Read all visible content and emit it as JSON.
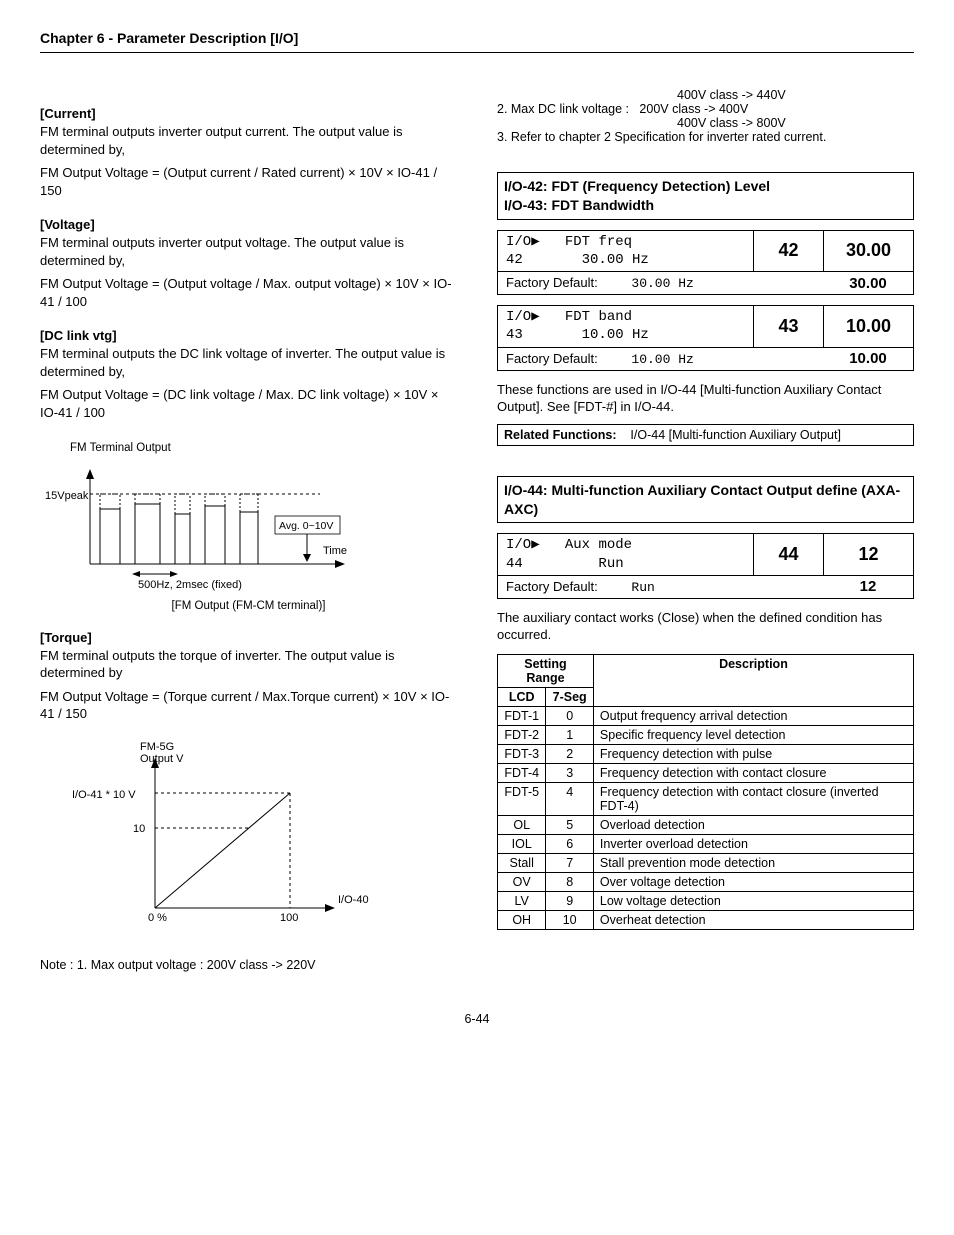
{
  "chapter": "Chapter 6 - Parameter Description [I/O]",
  "left": {
    "current": {
      "head": "[Current]",
      "body1": "FM terminal outputs inverter output current. The output value is determined by,",
      "body2": "FM Output Voltage = (Output current / Rated current) × 10V × IO-41 / 150"
    },
    "voltage": {
      "head": "[Voltage]",
      "body1": "FM terminal outputs inverter output voltage. The output value is determined by,",
      "body2": "FM Output Voltage = (Output voltage / Max. output voltage) × 10V × IO-41 / 100"
    },
    "dclink": {
      "head": "[DC link vtg]",
      "body1": "FM terminal outputs the DC link voltage of inverter. The output value is determined by,",
      "body2": "FM Output Voltage = (DC link voltage / Max. DC link voltage) × 10V × IO-41 / 100"
    },
    "diag1": {
      "title": "FM Terminal Output",
      "ylab": "15Vpeak",
      "avg": "Avg. 0~10V",
      "xlab": "Time",
      "freq": "500Hz, 2msec (fixed)",
      "caption": "[FM Output (FM-CM terminal)]"
    },
    "torque": {
      "head": "[Torque]",
      "body1": "FM terminal outputs the torque of inverter. The output value is determined by",
      "body2": "FM Output Voltage = (Torque current / Max.Torque current) × 10V × IO-41 / 150"
    },
    "diag2": {
      "ytitle1": "FM-5G",
      "ytitle2": "Output V",
      "yopt": "I/O-41 * 10 V",
      "y10": "10",
      "x0": "0 %",
      "x100": "100",
      "xparam": "I/O-40"
    },
    "note": "Note : 1. Max output voltage : 200V class -> 220V"
  },
  "right": {
    "topnotes": {
      "l1": "400V class -> 440V",
      "l2a": "2. Max DC link voltage :",
      "l2b": "200V class -> 400V",
      "l3": "400V class -> 800V",
      "l4": "3. Refer to chapter 2 Specification for inverter rated current."
    },
    "box42": {
      "header1": "I/O-42: FDT (Frequency Detection) Level",
      "header2": "I/O-43: FDT Bandwidth",
      "lcd_l1": "I/O▶   FDT freq",
      "lcd_l2": "42       30.00 Hz",
      "seg_a": "42",
      "seg_b": "30.00",
      "fd_label": "Factory Default:",
      "fd_val": "30.00 Hz",
      "fd_seg": "30.00"
    },
    "box43": {
      "lcd_l1": "I/O▶   FDT band",
      "lcd_l2": "43       10.00 Hz",
      "seg_a": "43",
      "seg_b": "10.00",
      "fd_label": "Factory Default:",
      "fd_val": "10.00 Hz",
      "fd_seg": "10.00"
    },
    "fdt_desc": "These functions are used in I/O-44 [Multi-function Auxiliary Contact Output]. See [FDT-#] in I/O-44.",
    "related": {
      "label": "Related Functions:",
      "text": "I/O-44 [Multi-function Auxiliary Output]"
    },
    "box44": {
      "header": "I/O-44: Multi-function Auxiliary Contact Output define (AXA-AXC)",
      "lcd_l1": "I/O▶   Aux mode",
      "lcd_l2": "44         Run",
      "seg_a": "44",
      "seg_b": "12",
      "fd_label": "Factory Default:",
      "fd_val": "Run",
      "fd_seg": "12"
    },
    "aux_desc": "The auxiliary contact works (Close) when the defined condition has occurred.",
    "table": {
      "cols": {
        "sr": "Setting Range",
        "lcd": "LCD",
        "seg": "7-Seg",
        "desc": "Description"
      },
      "rows": [
        {
          "lcd": "FDT-1",
          "seg": "0",
          "desc": "Output frequency arrival detection"
        },
        {
          "lcd": "FDT-2",
          "seg": "1",
          "desc": "Specific frequency level detection"
        },
        {
          "lcd": "FDT-3",
          "seg": "2",
          "desc": "Frequency detection with pulse"
        },
        {
          "lcd": "FDT-4",
          "seg": "3",
          "desc": "Frequency detection with contact closure"
        },
        {
          "lcd": "FDT-5",
          "seg": "4",
          "desc": "Frequency detection with contact closure (inverted FDT-4)"
        },
        {
          "lcd": "OL",
          "seg": "5",
          "desc": "Overload detection"
        },
        {
          "lcd": "IOL",
          "seg": "6",
          "desc": "Inverter overload detection"
        },
        {
          "lcd": "Stall",
          "seg": "7",
          "desc": "Stall prevention mode detection"
        },
        {
          "lcd": "OV",
          "seg": "8",
          "desc": "Over voltage detection"
        },
        {
          "lcd": "LV",
          "seg": "9",
          "desc": "Low voltage detection"
        },
        {
          "lcd": "OH",
          "seg": "10",
          "desc": "Overheat detection"
        }
      ]
    }
  },
  "footer": "6-44"
}
